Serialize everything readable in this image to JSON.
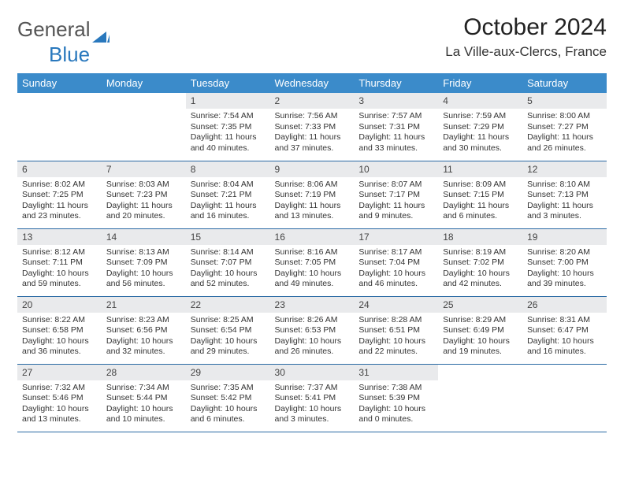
{
  "logo": {
    "text1": "General",
    "text2": "Blue"
  },
  "title": "October 2024",
  "location": "La Ville-aux-Clercs, France",
  "colors": {
    "header_bg": "#3b8bca",
    "header_text": "#ffffff",
    "daynum_bg": "#e9eaec",
    "row_border": "#2a6aa4",
    "logo_gray": "#555555",
    "logo_blue": "#2978bd"
  },
  "weekdays": [
    "Sunday",
    "Monday",
    "Tuesday",
    "Wednesday",
    "Thursday",
    "Friday",
    "Saturday"
  ],
  "weeks": [
    [
      null,
      null,
      {
        "n": "1",
        "sr": "7:54 AM",
        "ss": "7:35 PM",
        "dl": "11 hours and 40 minutes."
      },
      {
        "n": "2",
        "sr": "7:56 AM",
        "ss": "7:33 PM",
        "dl": "11 hours and 37 minutes."
      },
      {
        "n": "3",
        "sr": "7:57 AM",
        "ss": "7:31 PM",
        "dl": "11 hours and 33 minutes."
      },
      {
        "n": "4",
        "sr": "7:59 AM",
        "ss": "7:29 PM",
        "dl": "11 hours and 30 minutes."
      },
      {
        "n": "5",
        "sr": "8:00 AM",
        "ss": "7:27 PM",
        "dl": "11 hours and 26 minutes."
      }
    ],
    [
      {
        "n": "6",
        "sr": "8:02 AM",
        "ss": "7:25 PM",
        "dl": "11 hours and 23 minutes."
      },
      {
        "n": "7",
        "sr": "8:03 AM",
        "ss": "7:23 PM",
        "dl": "11 hours and 20 minutes."
      },
      {
        "n": "8",
        "sr": "8:04 AM",
        "ss": "7:21 PM",
        "dl": "11 hours and 16 minutes."
      },
      {
        "n": "9",
        "sr": "8:06 AM",
        "ss": "7:19 PM",
        "dl": "11 hours and 13 minutes."
      },
      {
        "n": "10",
        "sr": "8:07 AM",
        "ss": "7:17 PM",
        "dl": "11 hours and 9 minutes."
      },
      {
        "n": "11",
        "sr": "8:09 AM",
        "ss": "7:15 PM",
        "dl": "11 hours and 6 minutes."
      },
      {
        "n": "12",
        "sr": "8:10 AM",
        "ss": "7:13 PM",
        "dl": "11 hours and 3 minutes."
      }
    ],
    [
      {
        "n": "13",
        "sr": "8:12 AM",
        "ss": "7:11 PM",
        "dl": "10 hours and 59 minutes."
      },
      {
        "n": "14",
        "sr": "8:13 AM",
        "ss": "7:09 PM",
        "dl": "10 hours and 56 minutes."
      },
      {
        "n": "15",
        "sr": "8:14 AM",
        "ss": "7:07 PM",
        "dl": "10 hours and 52 minutes."
      },
      {
        "n": "16",
        "sr": "8:16 AM",
        "ss": "7:05 PM",
        "dl": "10 hours and 49 minutes."
      },
      {
        "n": "17",
        "sr": "8:17 AM",
        "ss": "7:04 PM",
        "dl": "10 hours and 46 minutes."
      },
      {
        "n": "18",
        "sr": "8:19 AM",
        "ss": "7:02 PM",
        "dl": "10 hours and 42 minutes."
      },
      {
        "n": "19",
        "sr": "8:20 AM",
        "ss": "7:00 PM",
        "dl": "10 hours and 39 minutes."
      }
    ],
    [
      {
        "n": "20",
        "sr": "8:22 AM",
        "ss": "6:58 PM",
        "dl": "10 hours and 36 minutes."
      },
      {
        "n": "21",
        "sr": "8:23 AM",
        "ss": "6:56 PM",
        "dl": "10 hours and 32 minutes."
      },
      {
        "n": "22",
        "sr": "8:25 AM",
        "ss": "6:54 PM",
        "dl": "10 hours and 29 minutes."
      },
      {
        "n": "23",
        "sr": "8:26 AM",
        "ss": "6:53 PM",
        "dl": "10 hours and 26 minutes."
      },
      {
        "n": "24",
        "sr": "8:28 AM",
        "ss": "6:51 PM",
        "dl": "10 hours and 22 minutes."
      },
      {
        "n": "25",
        "sr": "8:29 AM",
        "ss": "6:49 PM",
        "dl": "10 hours and 19 minutes."
      },
      {
        "n": "26",
        "sr": "8:31 AM",
        "ss": "6:47 PM",
        "dl": "10 hours and 16 minutes."
      }
    ],
    [
      {
        "n": "27",
        "sr": "7:32 AM",
        "ss": "5:46 PM",
        "dl": "10 hours and 13 minutes."
      },
      {
        "n": "28",
        "sr": "7:34 AM",
        "ss": "5:44 PM",
        "dl": "10 hours and 10 minutes."
      },
      {
        "n": "29",
        "sr": "7:35 AM",
        "ss": "5:42 PM",
        "dl": "10 hours and 6 minutes."
      },
      {
        "n": "30",
        "sr": "7:37 AM",
        "ss": "5:41 PM",
        "dl": "10 hours and 3 minutes."
      },
      {
        "n": "31",
        "sr": "7:38 AM",
        "ss": "5:39 PM",
        "dl": "10 hours and 0 minutes."
      },
      null,
      null
    ]
  ],
  "labels": {
    "sunrise": "Sunrise:",
    "sunset": "Sunset:",
    "daylight": "Daylight:"
  }
}
